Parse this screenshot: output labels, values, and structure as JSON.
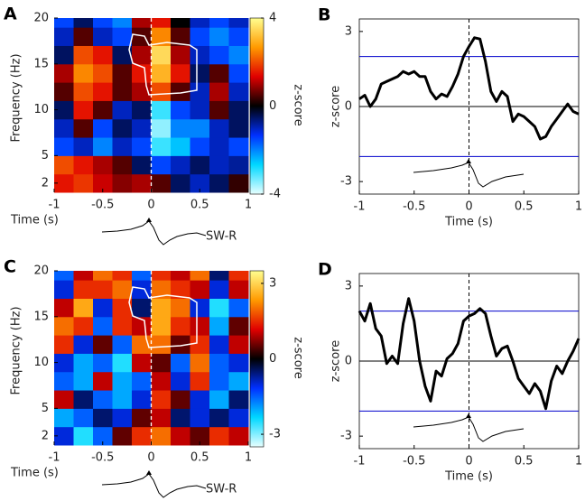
{
  "chart_data": [
    {
      "type": "heatmap",
      "panel_label": "A",
      "ylabel": "Frequency (Hz)",
      "xlabel": "Time (s)",
      "colorbar_label": "z-score",
      "annotation": "SW-R",
      "xlim": [
        -1,
        1
      ],
      "xticks": [
        -1,
        -0.5,
        0,
        0.5,
        1
      ],
      "ylim": [
        1,
        20
      ],
      "yticks": [
        2,
        5,
        10,
        15,
        20
      ],
      "clim": [
        -4,
        4
      ],
      "cticks": [
        -4,
        0,
        4
      ],
      "vline": 0,
      "colormap": [
        "#e8ffff",
        "#00d8ff",
        "#0030ff",
        "#000000",
        "#e00000",
        "#ff9a00",
        "#ffff90"
      ],
      "xbins": [
        -1,
        -0.8,
        -0.6,
        -0.4,
        -0.2,
        0,
        0.2,
        0.4,
        0.6,
        0.8,
        1
      ],
      "ybins": [
        1,
        3,
        5,
        7,
        9,
        11,
        13,
        15,
        17,
        19,
        20
      ],
      "z": [
        [
          1.5,
          1.8,
          1.2,
          0.8,
          1.0,
          0.5,
          -0.5,
          -1.0,
          -0.5,
          0.3
        ],
        [
          2.0,
          1.5,
          1.0,
          0.5,
          -0.5,
          -1.5,
          -1.0,
          -0.5,
          -1.0,
          -0.8
        ],
        [
          -1.5,
          -1.0,
          -2.0,
          -1.0,
          -1.5,
          -3.0,
          -2.5,
          -1.5,
          -1.0,
          -1.5
        ],
        [
          -1.0,
          0.5,
          -1.5,
          -0.5,
          -1.0,
          -3.5,
          -2.0,
          -2.0,
          -1.0,
          -0.5
        ],
        [
          -0.5,
          1.5,
          0.5,
          -1.0,
          -0.5,
          -3.0,
          -1.5,
          -1.0,
          0.5,
          -0.5
        ],
        [
          0.5,
          2.0,
          1.5,
          0.5,
          1.0,
          2.0,
          0.5,
          -1.0,
          1.0,
          -1.0
        ],
        [
          1.0,
          2.5,
          2.0,
          0.5,
          1.5,
          3.0,
          1.5,
          -0.5,
          0.5,
          -1.5
        ],
        [
          -0.5,
          2.0,
          1.5,
          -0.5,
          1.0,
          3.5,
          1.0,
          -1.0,
          -1.5,
          -2.0
        ],
        [
          -1.0,
          0.5,
          -1.0,
          -1.5,
          0.5,
          2.5,
          0.5,
          -1.5,
          -2.0,
          -1.5
        ],
        [
          -1.5,
          -0.5,
          -1.5,
          -2.0,
          1.0,
          1.5,
          0.0,
          -1.0,
          -1.5,
          -1.0
        ]
      ]
    },
    {
      "type": "line",
      "panel_label": "B",
      "ylabel": "z-score",
      "xlabel": "Time (s)",
      "xlim": [
        -1,
        1
      ],
      "xticks": [
        -1,
        -0.5,
        0,
        0.5,
        1
      ],
      "ylim": [
        -3.5,
        3.5
      ],
      "yticks": [
        -3,
        0,
        3
      ],
      "vline": 0,
      "hlines": [
        {
          "value": 2,
          "color": "#0000cc"
        },
        {
          "value": 0,
          "color": "#000000"
        },
        {
          "value": -2,
          "color": "#0000cc"
        }
      ],
      "color": "#000000",
      "x": [
        -1,
        -0.95,
        -0.9,
        -0.85,
        -0.8,
        -0.75,
        -0.7,
        -0.65,
        -0.6,
        -0.55,
        -0.5,
        -0.45,
        -0.4,
        -0.35,
        -0.3,
        -0.25,
        -0.2,
        -0.15,
        -0.1,
        -0.05,
        0,
        0.05,
        0.1,
        0.15,
        0.2,
        0.25,
        0.3,
        0.35,
        0.4,
        0.45,
        0.5,
        0.55,
        0.6,
        0.65,
        0.7,
        0.75,
        0.8,
        0.85,
        0.9,
        0.95,
        1
      ],
      "values": [
        0.3,
        0.45,
        0.0,
        0.3,
        0.9,
        1.0,
        1.1,
        1.2,
        1.4,
        1.3,
        1.4,
        1.2,
        1.2,
        0.6,
        0.3,
        0.5,
        0.4,
        0.8,
        1.3,
        2.0,
        2.4,
        2.75,
        2.7,
        1.8,
        0.6,
        0.2,
        0.6,
        0.4,
        -0.6,
        -0.3,
        -0.4,
        -0.6,
        -0.8,
        -1.3,
        -1.2,
        -0.8,
        -0.5,
        -0.2,
        0.1,
        -0.2,
        -0.3
      ]
    },
    {
      "type": "heatmap",
      "panel_label": "C",
      "ylabel": "Frequency (Hz)",
      "xlabel": "Time (s)",
      "colorbar_label": "z-score",
      "annotation": "SW-R",
      "xlim": [
        -1,
        1
      ],
      "xticks": [
        -1,
        -0.5,
        0,
        0.5,
        1
      ],
      "ylim": [
        1,
        20
      ],
      "yticks": [
        2,
        5,
        10,
        15,
        20
      ],
      "clim": [
        -3.5,
        3.5
      ],
      "cticks": [
        -3,
        0,
        3
      ],
      "vline": 0,
      "colormap": [
        "#e8ffff",
        "#00d8ff",
        "#0030ff",
        "#000000",
        "#e00000",
        "#ff9a00",
        "#ffff90"
      ],
      "xbins": [
        -1,
        -0.8,
        -0.6,
        -0.4,
        -0.2,
        0,
        0.2,
        0.4,
        0.6,
        0.8,
        1
      ],
      "ybins": [
        1,
        3,
        5,
        7,
        9,
        11,
        13,
        15,
        17,
        19,
        20
      ],
      "z": [
        [
          -1.0,
          -2.5,
          -1.5,
          0.5,
          1.5,
          2.0,
          1.0,
          0.5,
          1.5,
          1.0
        ],
        [
          -2.0,
          -1.5,
          -0.5,
          -1.0,
          0.5,
          1.0,
          -0.5,
          -1.0,
          -0.5,
          -1.0
        ],
        [
          1.0,
          -0.5,
          -1.5,
          -2.0,
          -1.0,
          1.5,
          0.5,
          -1.0,
          -2.0,
          -0.5
        ],
        [
          -1.5,
          -2.0,
          1.0,
          -2.0,
          -1.5,
          1.0,
          -1.0,
          1.5,
          -1.5,
          -2.0
        ],
        [
          -1.0,
          -2.0,
          -1.5,
          -2.5,
          1.0,
          0.5,
          -1.5,
          2.0,
          -1.5,
          -1.0
        ],
        [
          1.5,
          -1.0,
          0.5,
          -1.5,
          2.0,
          2.0,
          0.5,
          1.5,
          -1.0,
          1.0
        ],
        [
          2.0,
          1.5,
          -1.5,
          1.5,
          1.0,
          2.5,
          1.5,
          1.0,
          -2.0,
          0.5
        ],
        [
          1.0,
          2.5,
          -1.0,
          1.5,
          -0.5,
          2.5,
          2.0,
          -1.0,
          -2.5,
          -1.5
        ],
        [
          -1.0,
          1.5,
          1.5,
          2.0,
          -1.0,
          2.0,
          1.5,
          1.0,
          -1.0,
          1.0
        ],
        [
          -1.5,
          1.0,
          2.0,
          1.5,
          -1.5,
          1.5,
          1.0,
          2.0,
          -0.5,
          1.5
        ]
      ]
    },
    {
      "type": "line",
      "panel_label": "D",
      "ylabel": "z-score",
      "xlabel": "Time (s)",
      "xlim": [
        -1,
        1
      ],
      "xticks": [
        -1,
        -0.5,
        0,
        0.5,
        1
      ],
      "ylim": [
        -3.5,
        3.5
      ],
      "yticks": [
        -3,
        0,
        3
      ],
      "vline": 0,
      "hlines": [
        {
          "value": 2,
          "color": "#0000cc"
        },
        {
          "value": 0,
          "color": "#000000"
        },
        {
          "value": -2,
          "color": "#0000cc"
        }
      ],
      "color": "#000000",
      "x": [
        -1,
        -0.95,
        -0.9,
        -0.85,
        -0.8,
        -0.75,
        -0.7,
        -0.65,
        -0.6,
        -0.55,
        -0.5,
        -0.45,
        -0.4,
        -0.35,
        -0.3,
        -0.25,
        -0.2,
        -0.15,
        -0.1,
        -0.05,
        0,
        0.05,
        0.1,
        0.15,
        0.2,
        0.25,
        0.3,
        0.35,
        0.4,
        0.45,
        0.5,
        0.55,
        0.6,
        0.65,
        0.7,
        0.75,
        0.8,
        0.85,
        0.9,
        0.95,
        1
      ],
      "values": [
        2.0,
        1.6,
        2.3,
        1.3,
        1.0,
        -0.1,
        0.2,
        -0.1,
        1.5,
        2.5,
        1.6,
        0.0,
        -1.0,
        -1.6,
        -0.4,
        -0.6,
        0.1,
        0.3,
        0.7,
        1.6,
        1.8,
        1.9,
        2.1,
        1.9,
        1.0,
        0.2,
        0.5,
        0.6,
        0.0,
        -0.7,
        -1.0,
        -1.3,
        -0.9,
        -1.2,
        -1.9,
        -0.8,
        -0.2,
        -0.5,
        0.0,
        0.4,
        0.9
      ]
    }
  ]
}
